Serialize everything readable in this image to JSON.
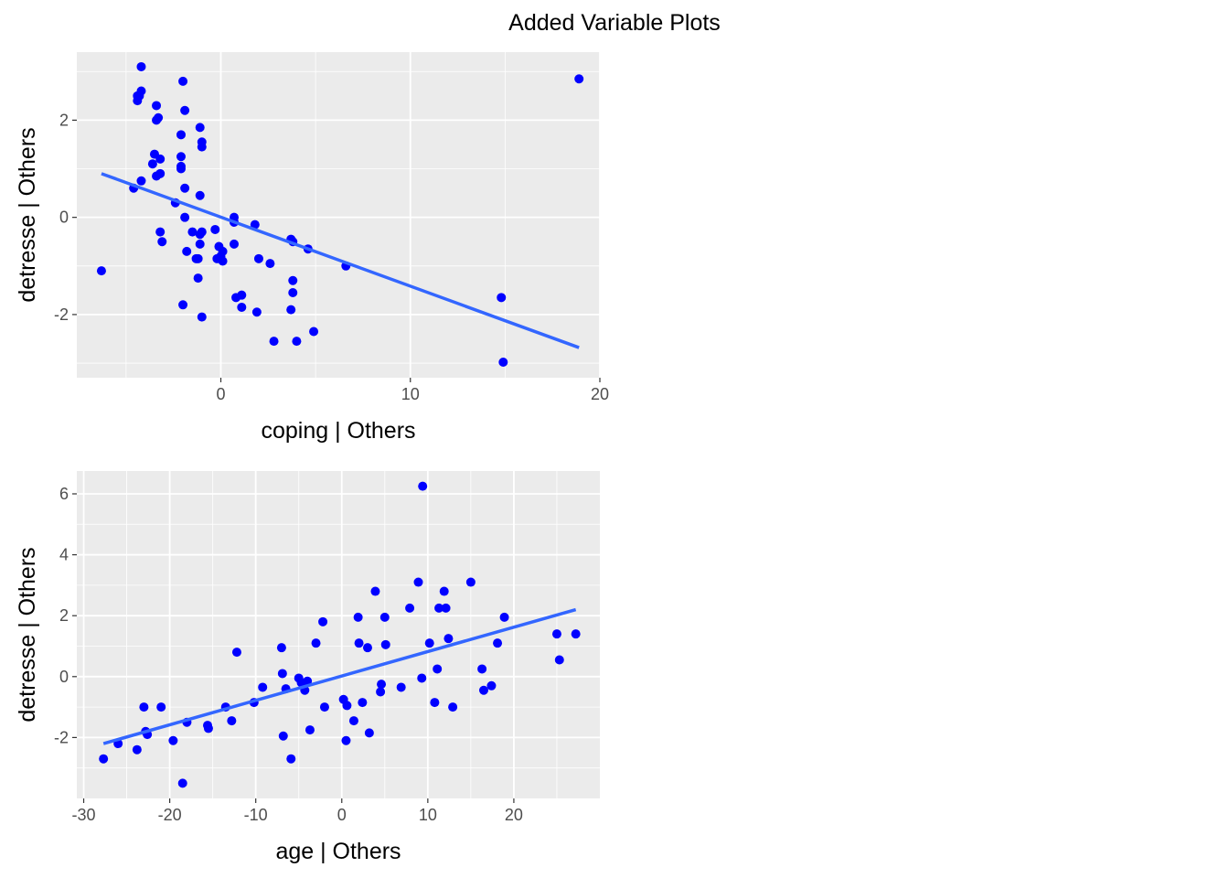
{
  "figure_title": "Added Variable Plots",
  "colors": {
    "point": "#0000FF",
    "fit_line": "#3366FF",
    "panel_bg": "#EBEBEB",
    "grid": "#FFFFFF",
    "tick_text": "#4D4D4D"
  },
  "chart_data": [
    {
      "type": "scatter",
      "title": "",
      "xlabel": "coping  | Others",
      "ylabel": "detresse  | Others",
      "xlim": [
        -7.6,
        20.0
      ],
      "ylim": [
        -3.3,
        3.4
      ],
      "xticks": [
        0,
        10,
        20
      ],
      "yticks": [
        -2,
        0,
        2
      ],
      "grid": true,
      "fit_line": {
        "x": [
          -6.3,
          18.9
        ],
        "y": [
          0.9,
          -2.68
        ]
      },
      "series": [
        {
          "x": [
            -6.3,
            -4.2,
            -4.2,
            -4.3,
            -4.4,
            -4.4,
            -4.6,
            -4.2,
            -3.4,
            -3.4,
            -3.3,
            -3.5,
            -3.2,
            -3.6,
            -3.4,
            -3.2,
            -3.2,
            -2.0,
            -1.9,
            -2.1,
            -2.1,
            -2.1,
            -2.1,
            -1.9,
            -1.9,
            -1.8,
            -1.1,
            -1.0,
            -1.0,
            -1.1,
            -1.0,
            -2.4,
            -3.1,
            -1.5,
            -1.1,
            -1.1,
            -1.3,
            -2.0,
            -1.2,
            -1.0,
            -1.2,
            -0.3,
            -0.1,
            0.1,
            0.0,
            0.1,
            -0.2,
            0.7,
            0.7,
            0.7,
            1.1,
            0.8,
            1.1,
            1.8,
            2.0,
            1.9,
            2.6,
            2.8,
            3.7,
            3.8,
            3.8,
            3.7,
            4.0,
            3.8,
            4.6,
            4.9,
            6.6,
            14.8,
            14.9,
            18.9
          ],
          "y": [
            -1.1,
            3.1,
            2.6,
            2.5,
            2.4,
            2.5,
            0.6,
            0.75,
            2.3,
            2.0,
            2.05,
            1.3,
            1.2,
            1.1,
            0.85,
            0.9,
            -0.3,
            2.8,
            2.2,
            1.7,
            1.25,
            1.05,
            1.0,
            0.6,
            0.0,
            -0.7,
            1.85,
            1.55,
            1.45,
            0.45,
            -0.3,
            0.3,
            -0.5,
            -0.3,
            -0.35,
            -0.55,
            -0.85,
            -1.8,
            -1.25,
            -2.05,
            -0.85,
            -0.25,
            -0.6,
            -0.9,
            -0.8,
            -0.7,
            -0.85,
            0.0,
            -0.1,
            -0.55,
            -1.6,
            -1.65,
            -1.85,
            -0.15,
            -0.85,
            -1.95,
            -0.95,
            -2.55,
            -0.45,
            -1.3,
            -1.55,
            -1.9,
            -2.55,
            -0.5,
            -0.65,
            -2.35,
            -1.0,
            -1.65,
            -2.98,
            2.85
          ]
        }
      ]
    },
    {
      "type": "scatter",
      "title": "",
      "xlabel": "age  | Others",
      "ylabel": "detresse  | Others",
      "xlim": [
        -30.8,
        30.0
      ],
      "ylim": [
        -4.0,
        6.75
      ],
      "xticks": [
        -30,
        -20,
        -10,
        0,
        10,
        20
      ],
      "yticks": [
        -2,
        0,
        2,
        4,
        6
      ],
      "grid": true,
      "fit_line": {
        "x": [
          -27.7,
          27.2
        ],
        "y": [
          -2.2,
          2.2
        ]
      },
      "series": [
        {
          "x": [
            -27.7,
            -26.0,
            -23.8,
            -23.0,
            -22.8,
            -22.6,
            -21.0,
            -19.6,
            -18.5,
            -18.0,
            -15.6,
            -15.5,
            -13.5,
            -12.8,
            -12.2,
            -10.2,
            -9.2,
            -7.0,
            -6.8,
            -6.9,
            -6.5,
            -5.9,
            -5.0,
            -4.7,
            -4.3,
            -4.0,
            -3.7,
            -3.0,
            -2.2,
            -2.0,
            0.2,
            0.5,
            0.6,
            1.4,
            1.9,
            2.0,
            2.4,
            3.0,
            3.2,
            3.9,
            4.5,
            4.6,
            5.1,
            5.0,
            6.9,
            7.9,
            8.9,
            9.4,
            9.3,
            10.2,
            10.8,
            11.1,
            11.3,
            11.9,
            12.1,
            12.4,
            12.9,
            15.0,
            16.3,
            16.5,
            17.4,
            18.1,
            18.9,
            25.0,
            25.3,
            27.2
          ],
          "y": [
            -2.7,
            -2.2,
            -2.4,
            -1.0,
            -1.8,
            -1.9,
            -1.0,
            -2.1,
            -3.5,
            -1.5,
            -1.6,
            -1.7,
            -1.0,
            -1.45,
            0.8,
            -0.85,
            -0.35,
            0.95,
            -1.95,
            0.1,
            -0.4,
            -2.7,
            -0.05,
            -0.2,
            -0.45,
            -0.15,
            -1.75,
            1.1,
            1.8,
            -1.0,
            -0.75,
            -2.1,
            -0.95,
            -1.45,
            1.95,
            1.1,
            -0.85,
            0.95,
            -1.85,
            2.8,
            -0.5,
            -0.25,
            1.05,
            1.95,
            -0.35,
            2.25,
            3.1,
            6.25,
            -0.05,
            1.1,
            -0.85,
            0.25,
            2.25,
            2.8,
            2.25,
            1.25,
            -1.0,
            3.1,
            0.25,
            -0.45,
            -0.3,
            1.1,
            1.95,
            1.4,
            0.55,
            1.4
          ]
        }
      ]
    }
  ]
}
